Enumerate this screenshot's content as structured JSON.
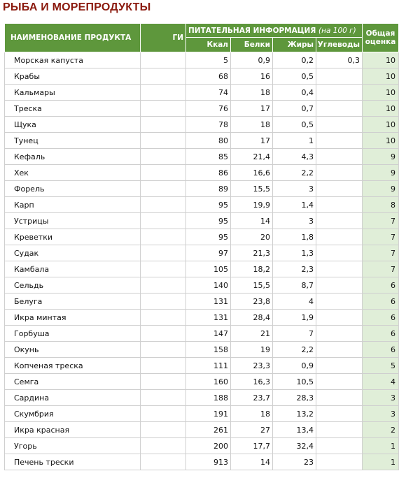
{
  "title": "РЫБА И МОРЕПРОДУКТЫ",
  "colors": {
    "header_bg": "#5e973c",
    "title": "#8b1a0e",
    "score_bg": "#e0eed8"
  },
  "headers": {
    "name": "НАИМЕНОВАНИЕ ПРОДУКТА",
    "gi": "ГИ",
    "nutrition": "ПИТАТЕЛЬНАЯ ИНФОРМАЦИЯ",
    "per": "(на 100 г)",
    "kcal": "Ккал",
    "protein": "Белки",
    "fat": "Жиры",
    "carbs": "Углеводы",
    "score_line1": "Общая",
    "score_line2": "оценка"
  },
  "rows": [
    {
      "name": "Морская капуста",
      "gi": "",
      "kcal": "5",
      "protein": "0,9",
      "fat": "0,2",
      "carbs": "0,3",
      "score": "10"
    },
    {
      "name": "Крабы",
      "gi": "",
      "kcal": "68",
      "protein": "16",
      "fat": "0,5",
      "carbs": "",
      "score": "10"
    },
    {
      "name": "Кальмары",
      "gi": "",
      "kcal": "74",
      "protein": "18",
      "fat": "0,4",
      "carbs": "",
      "score": "10"
    },
    {
      "name": "Треска",
      "gi": "",
      "kcal": "76",
      "protein": "17",
      "fat": "0,7",
      "carbs": "",
      "score": "10"
    },
    {
      "name": "Щука",
      "gi": "",
      "kcal": "78",
      "protein": "18",
      "fat": "0,5",
      "carbs": "",
      "score": "10"
    },
    {
      "name": "Тунец",
      "gi": "",
      "kcal": "80",
      "protein": "17",
      "fat": "1",
      "carbs": "",
      "score": "10"
    },
    {
      "name": "Кефаль",
      "gi": "",
      "kcal": "85",
      "protein": "21,4",
      "fat": "4,3",
      "carbs": "",
      "score": "9"
    },
    {
      "name": "Хек",
      "gi": "",
      "kcal": "86",
      "protein": "16,6",
      "fat": "2,2",
      "carbs": "",
      "score": "9"
    },
    {
      "name": "Форель",
      "gi": "",
      "kcal": "89",
      "protein": "15,5",
      "fat": "3",
      "carbs": "",
      "score": "9"
    },
    {
      "name": "Карп",
      "gi": "",
      "kcal": "95",
      "protein": "19,9",
      "fat": "1,4",
      "carbs": "",
      "score": "8"
    },
    {
      "name": "Устрицы",
      "gi": "",
      "kcal": "95",
      "protein": "14",
      "fat": "3",
      "carbs": "",
      "score": "7"
    },
    {
      "name": "Креветки",
      "gi": "",
      "kcal": "95",
      "protein": "20",
      "fat": "1,8",
      "carbs": "",
      "score": "7"
    },
    {
      "name": "Судак",
      "gi": "",
      "kcal": "97",
      "protein": "21,3",
      "fat": "1,3",
      "carbs": "",
      "score": "7"
    },
    {
      "name": "Камбала",
      "gi": "",
      "kcal": "105",
      "protein": "18,2",
      "fat": "2,3",
      "carbs": "",
      "score": "7"
    },
    {
      "name": "Сельдь",
      "gi": "",
      "kcal": "140",
      "protein": "15,5",
      "fat": "8,7",
      "carbs": "",
      "score": "6"
    },
    {
      "name": "Белуга",
      "gi": "",
      "kcal": "131",
      "protein": "23,8",
      "fat": "4",
      "carbs": "",
      "score": "6"
    },
    {
      "name": "Икра минтая",
      "gi": "",
      "kcal": "131",
      "protein": "28,4",
      "fat": "1,9",
      "carbs": "",
      "score": "6"
    },
    {
      "name": "Горбуша",
      "gi": "",
      "kcal": "147",
      "protein": "21",
      "fat": "7",
      "carbs": "",
      "score": "6"
    },
    {
      "name": "Окунь",
      "gi": "",
      "kcal": "158",
      "protein": "19",
      "fat": "2,2",
      "carbs": "",
      "score": "6"
    },
    {
      "name": "Копченая треска",
      "gi": "",
      "kcal": "111",
      "protein": "23,3",
      "fat": "0,9",
      "carbs": "",
      "score": "5"
    },
    {
      "name": "Семга",
      "gi": "",
      "kcal": "160",
      "protein": "16,3",
      "fat": "10,5",
      "carbs": "",
      "score": "4"
    },
    {
      "name": "Сардина",
      "gi": "",
      "kcal": "188",
      "protein": "23,7",
      "fat": "28,3",
      "carbs": "",
      "score": "3"
    },
    {
      "name": "Скумбрия",
      "gi": "",
      "kcal": "191",
      "protein": "18",
      "fat": "13,2",
      "carbs": "",
      "score": "3"
    },
    {
      "name": "Икра красная",
      "gi": "",
      "kcal": "261",
      "protein": "27",
      "fat": "13,4",
      "carbs": "",
      "score": "2"
    },
    {
      "name": "Угорь",
      "gi": "",
      "kcal": "200",
      "protein": "17,7",
      "fat": "32,4",
      "carbs": "",
      "score": "1"
    },
    {
      "name": "Печень трески",
      "gi": "",
      "kcal": "913",
      "protein": "14",
      "fat": "23",
      "carbs": "",
      "score": "1"
    }
  ]
}
